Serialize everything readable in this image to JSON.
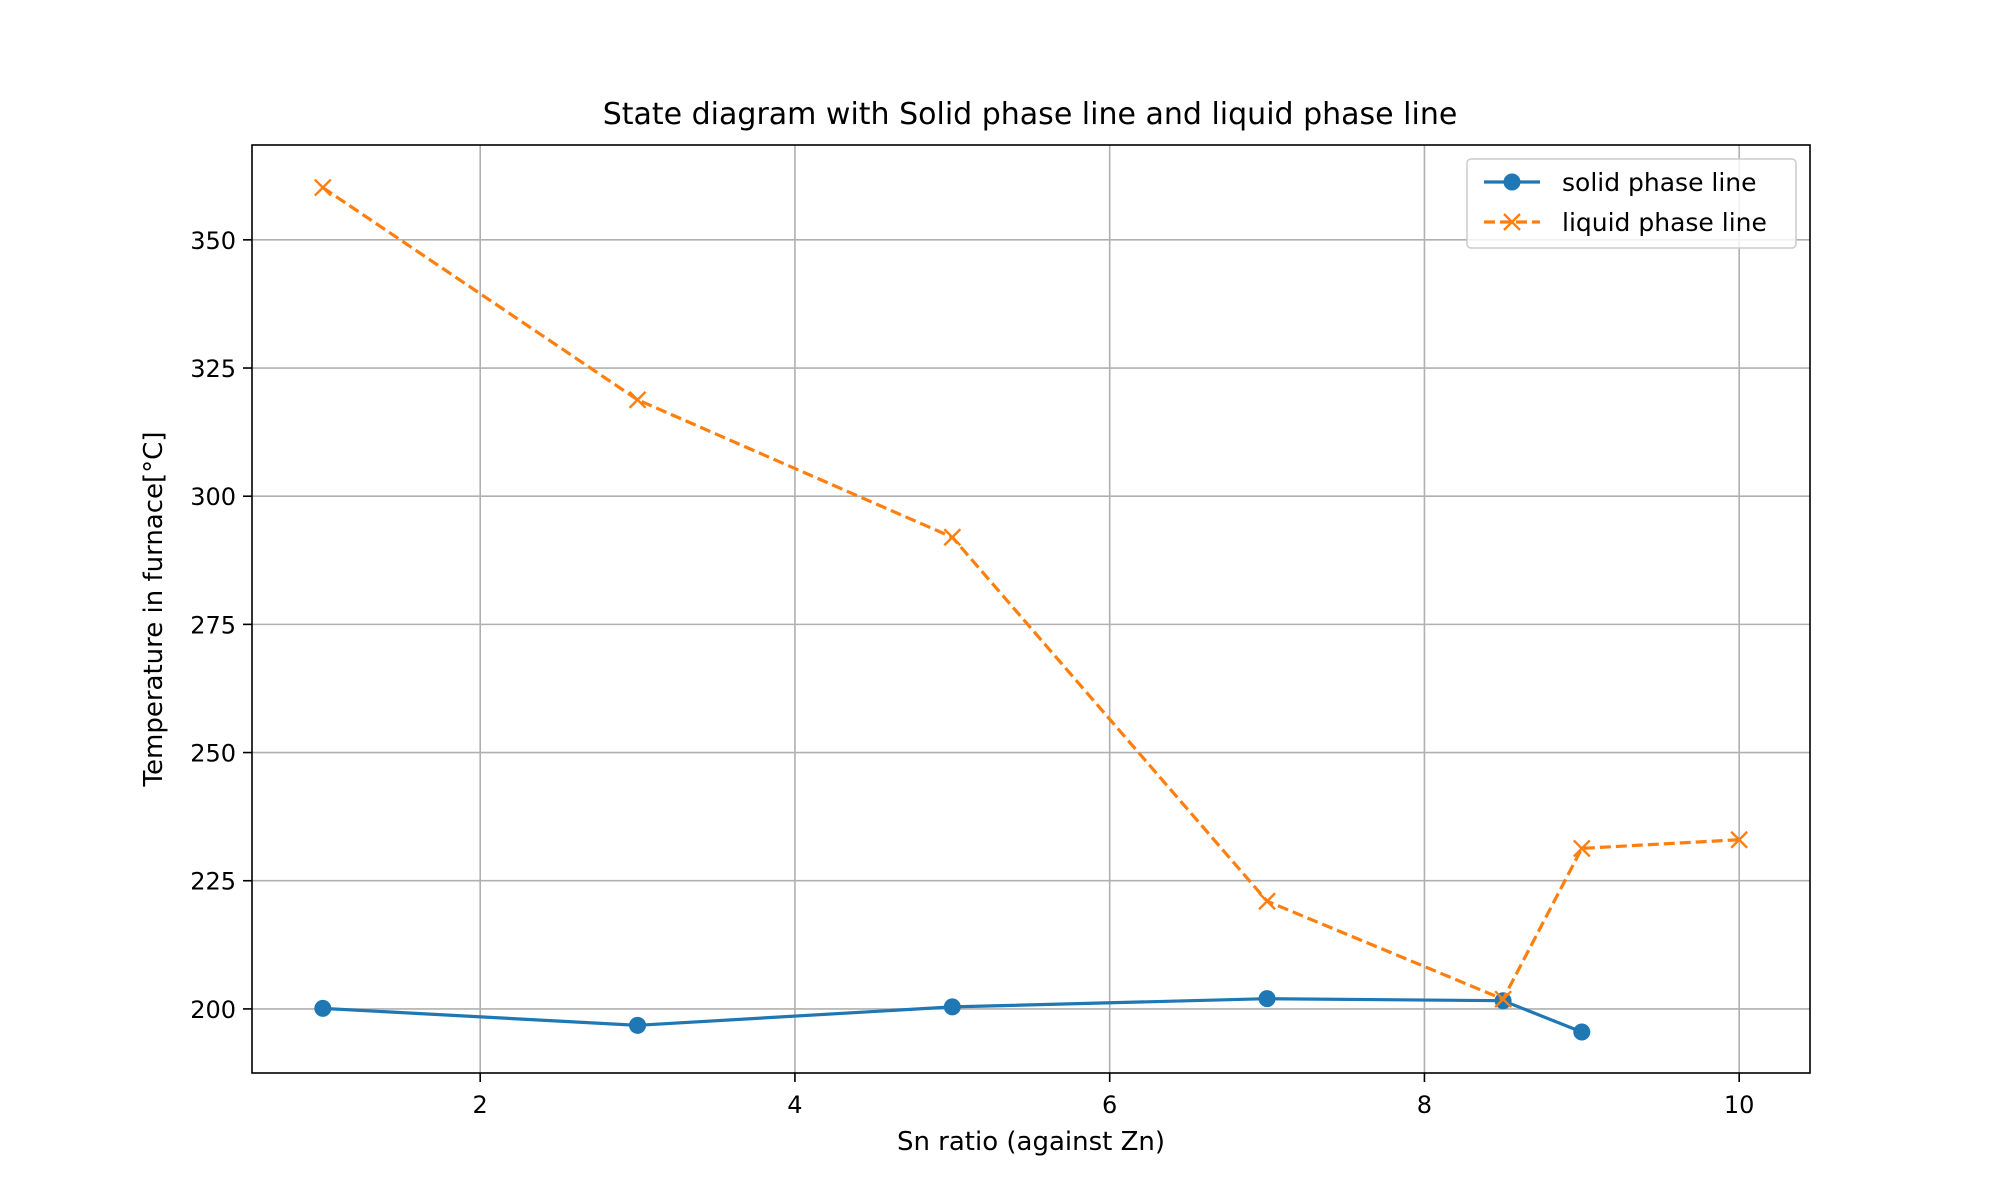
{
  "chart_data": {
    "type": "line",
    "title": "State diagram with Solid phase line and liquid phase line",
    "xlabel": "Sn ratio (against Zn)",
    "ylabel": "Temperature in furnace[°C]",
    "xlim": [
      0.55,
      10.45
    ],
    "ylim": [
      187.5,
      368.5
    ],
    "xticks": [
      2,
      4,
      6,
      8,
      10
    ],
    "yticks": [
      200,
      225,
      250,
      275,
      300,
      325,
      350
    ],
    "grid": true,
    "legend_position": "top-right",
    "series": [
      {
        "name": "solid phase line",
        "color": "#1f77b4",
        "line_style": "solid",
        "marker": "circle",
        "x": [
          1,
          3,
          5,
          7,
          8.5,
          9
        ],
        "y": [
          200.1,
          196.8,
          200.4,
          202.0,
          201.6,
          195.5
        ]
      },
      {
        "name": "liquid phase line",
        "color": "#ff7f0e",
        "line_style": "dashed",
        "marker": "x",
        "x": [
          1,
          3,
          5,
          7,
          8.5,
          9,
          10
        ],
        "y": [
          360.2,
          318.8,
          292.0,
          221.0,
          201.9,
          231.3,
          233.0
        ]
      }
    ]
  }
}
